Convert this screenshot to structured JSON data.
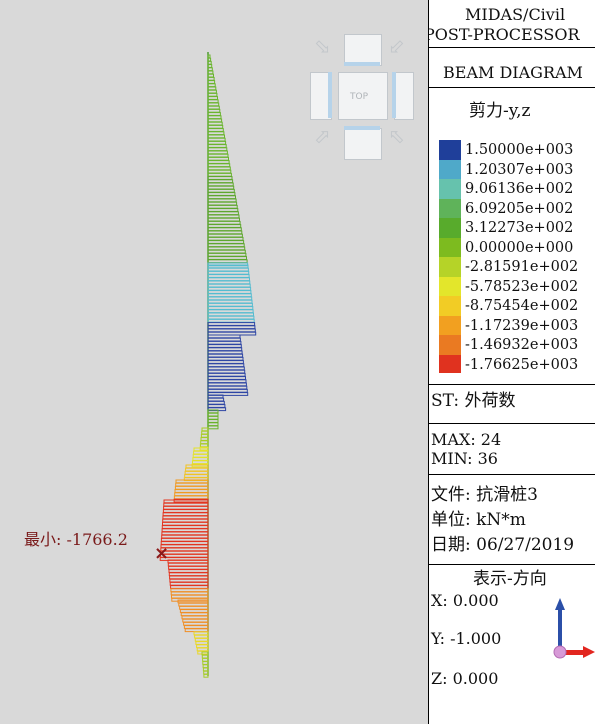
{
  "viewport": {
    "min_label": "最小: -1766.2",
    "min_marker": "×",
    "view_cube_label": "TOP"
  },
  "panel": {
    "app_name": "MIDAS/Civil",
    "mode": "POST-PROCESSOR",
    "diagram_type": "BEAM DIAGRAM",
    "quantity": "剪力-y,z",
    "legend": [
      {
        "value": "1.50000e+003",
        "color": "#1f3f9a"
      },
      {
        "value": "1.20307e+003",
        "color": "#4fa9c9"
      },
      {
        "value": "9.06136e+002",
        "color": "#66c2ad"
      },
      {
        "value": "6.09205e+002",
        "color": "#5fb35a"
      },
      {
        "value": "3.12273e+002",
        "color": "#58ab2c"
      },
      {
        "value": "0.00000e+000",
        "color": "#7dbb1f"
      },
      {
        "value": "-2.81591e+002",
        "color": "#b5d328"
      },
      {
        "value": "-5.78523e+002",
        "color": "#e3e62b"
      },
      {
        "value": "-8.75454e+002",
        "color": "#f2cc25"
      },
      {
        "value": "-1.17239e+003",
        "color": "#f2a020"
      },
      {
        "value": "-1.46932e+003",
        "color": "#ea7a22"
      },
      {
        "value": "-1.76625e+003",
        "color": "#e0321f"
      }
    ],
    "stage": "ST: 外荷数",
    "max": "MAX: 24",
    "min": "MIN: 36",
    "file": "文件: 抗滑桩3",
    "unit": "单位: kN*m",
    "date": "日期: 06/27/2019",
    "view_direction": "表示-方向",
    "x": "X: 0.000",
    "y": "Y: -1.000",
    "z": "Z: 0.000"
  }
}
